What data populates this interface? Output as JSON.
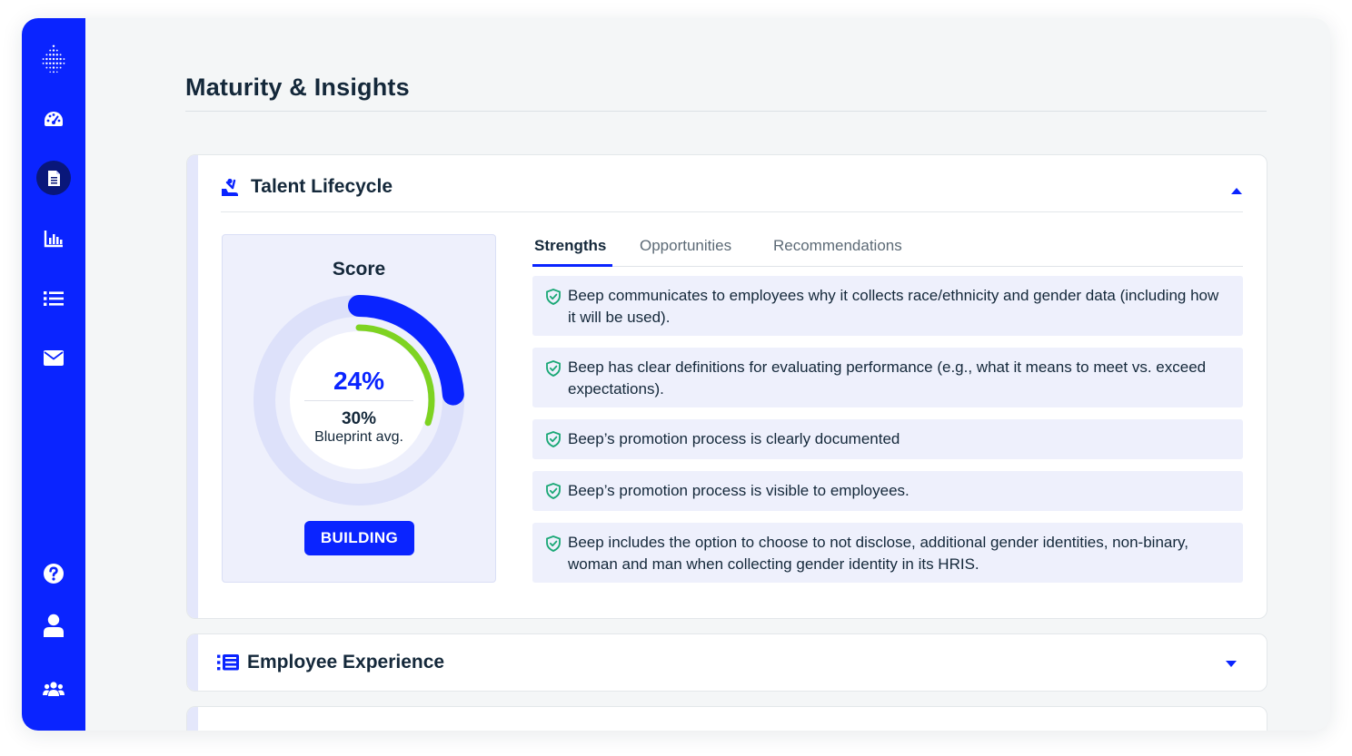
{
  "page": {
    "title": "Maturity & Insights"
  },
  "sidebar": {
    "items": [
      {
        "icon": "dashboard-gauge-icon"
      },
      {
        "icon": "document-icon",
        "active": true
      },
      {
        "icon": "bar-chart-icon"
      },
      {
        "icon": "list-icon"
      },
      {
        "icon": "mail-icon"
      }
    ],
    "bottom": [
      {
        "icon": "help-icon"
      },
      {
        "icon": "user-icon"
      },
      {
        "icon": "team-icon"
      }
    ]
  },
  "sections": [
    {
      "title": "Talent Lifecycle",
      "icon": "talent-lifecycle-icon",
      "expanded": true,
      "score": {
        "label": "Score",
        "value": "24%",
        "fraction": 0.24,
        "blueprint_value": "30%",
        "blueprint_fraction": 0.3,
        "blueprint_label": "Blueprint avg.",
        "level": "BUILDING"
      },
      "tabs": [
        "Strengths",
        "Opportunities",
        "Recommendations"
      ],
      "active_tab": "Strengths",
      "strengths": [
        "Beep communicates to employees why it collects race/ethnicity and gender data (including how it will be used).",
        "Beep has clear definitions for evaluating performance (e.g., what it means to meet vs. exceed expectations).",
        "Beep’s promotion process is clearly documented",
        "Beep’s promotion process is visible to employees.",
        "Beep includes the option to choose to not disclose, additional gender identities, non-binary, woman and man when collecting gender identity in its HRIS."
      ]
    },
    {
      "title": "Employee Experience",
      "icon": "employee-experience-icon",
      "expanded": false
    }
  ],
  "colors": {
    "brand": "#0a24ff",
    "score_arc": "#0a24ff",
    "blueprint_arc": "#7ed321",
    "gauge_track": "#dde1fa",
    "check": "#1aa876"
  }
}
